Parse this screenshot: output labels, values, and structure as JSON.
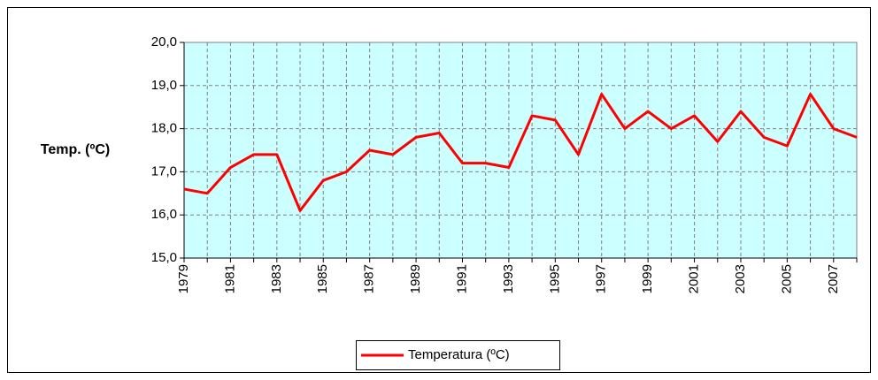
{
  "chart_data": {
    "type": "line",
    "y_label": "Temp. (ºC)",
    "categories": [
      "1979",
      null,
      "1981",
      null,
      "1983",
      null,
      "1985",
      null,
      "1987",
      null,
      "1989",
      null,
      "1991",
      null,
      "1993",
      null,
      "1995",
      null,
      "1997",
      null,
      "1999",
      null,
      "2001",
      null,
      "2003",
      null,
      "2005",
      null,
      "2007",
      null
    ],
    "series": [
      {
        "name": "Temperatura (ºC)",
        "color": "#ff0000",
        "values": [
          16.6,
          16.5,
          17.1,
          17.4,
          17.4,
          16.1,
          16.8,
          17.0,
          17.5,
          17.4,
          17.8,
          17.9,
          17.2,
          17.2,
          17.1,
          18.3,
          18.2,
          17.4,
          18.8,
          18.0,
          18.4,
          18.0,
          18.3,
          17.7,
          18.4,
          17.8,
          17.6,
          18.8,
          18.0,
          17.8
        ]
      }
    ],
    "ylim": [
      15,
      20
    ],
    "yticks": [
      {
        "value": 15,
        "label": "15,0"
      },
      {
        "value": 16,
        "label": "16,0"
      },
      {
        "value": 17,
        "label": "17,0"
      },
      {
        "value": 18,
        "label": "18,0"
      },
      {
        "value": 19,
        "label": "19,0"
      },
      {
        "value": 20,
        "label": "20,0"
      }
    ],
    "grid": true,
    "plot_background": "#ccffff",
    "legend": "bottom"
  }
}
